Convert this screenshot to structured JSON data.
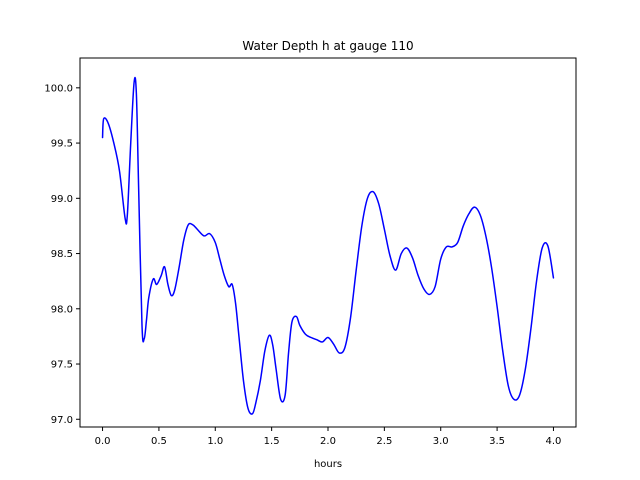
{
  "chart_data": {
    "type": "line",
    "title": "Water Depth h at gauge 110",
    "xlabel": "hours",
    "ylabel": "",
    "xlim": [
      -0.2,
      4.2
    ],
    "ylim": [
      96.93,
      100.27
    ],
    "xticks": [
      0.0,
      0.5,
      1.0,
      1.5,
      2.0,
      2.5,
      3.0,
      3.5,
      4.0
    ],
    "xtick_labels": [
      "0.0",
      "0.5",
      "1.0",
      "1.5",
      "2.0",
      "2.5",
      "3.0",
      "3.5",
      "4.0"
    ],
    "yticks": [
      97.0,
      97.5,
      98.0,
      98.5,
      99.0,
      99.5,
      100.0
    ],
    "ytick_labels": [
      "97.0",
      "97.5",
      "98.0",
      "98.5",
      "99.0",
      "99.5",
      "100.0"
    ],
    "grid": false,
    "series": [
      {
        "color": "#0000ff",
        "x": [
          0.0,
          0.01,
          0.05,
          0.1,
          0.15,
          0.2,
          0.22,
          0.25,
          0.28,
          0.3,
          0.32,
          0.35,
          0.37,
          0.39,
          0.41,
          0.45,
          0.48,
          0.52,
          0.55,
          0.58,
          0.61,
          0.64,
          0.68,
          0.72,
          0.76,
          0.8,
          0.84,
          0.9,
          0.95,
          1.0,
          1.04,
          1.08,
          1.12,
          1.15,
          1.18,
          1.21,
          1.25,
          1.29,
          1.33,
          1.36,
          1.4,
          1.44,
          1.48,
          1.51,
          1.54,
          1.58,
          1.62,
          1.65,
          1.68,
          1.72,
          1.75,
          1.8,
          1.85,
          1.9,
          1.95,
          2.0,
          2.05,
          2.1,
          2.15,
          2.2,
          2.25,
          2.3,
          2.35,
          2.4,
          2.45,
          2.5,
          2.55,
          2.6,
          2.65,
          2.7,
          2.75,
          2.8,
          2.85,
          2.9,
          2.95,
          3.0,
          3.05,
          3.1,
          3.15,
          3.2,
          3.25,
          3.3,
          3.35,
          3.4,
          3.45,
          3.5,
          3.55,
          3.6,
          3.65,
          3.7,
          3.75,
          3.8,
          3.85,
          3.9,
          3.95,
          4.0
        ],
        "y": [
          99.55,
          99.72,
          99.68,
          99.5,
          99.25,
          98.82,
          98.85,
          99.5,
          100.05,
          99.95,
          99.1,
          97.85,
          97.73,
          97.9,
          98.1,
          98.27,
          98.22,
          98.3,
          98.38,
          98.22,
          98.12,
          98.17,
          98.38,
          98.62,
          98.76,
          98.76,
          98.72,
          98.66,
          98.68,
          98.6,
          98.45,
          98.3,
          98.2,
          98.22,
          98.05,
          97.75,
          97.35,
          97.1,
          97.05,
          97.15,
          97.35,
          97.62,
          97.76,
          97.67,
          97.45,
          97.18,
          97.22,
          97.6,
          97.88,
          97.93,
          97.85,
          97.77,
          97.74,
          97.72,
          97.7,
          97.74,
          97.68,
          97.6,
          97.65,
          97.92,
          98.35,
          98.75,
          99.0,
          99.06,
          98.95,
          98.72,
          98.48,
          98.35,
          98.5,
          98.55,
          98.46,
          98.3,
          98.18,
          98.13,
          98.2,
          98.45,
          98.56,
          98.56,
          98.6,
          98.75,
          98.86,
          98.92,
          98.85,
          98.66,
          98.38,
          98.02,
          97.62,
          97.3,
          97.18,
          97.22,
          97.45,
          97.82,
          98.25,
          98.55,
          98.57,
          98.28
        ]
      }
    ]
  }
}
